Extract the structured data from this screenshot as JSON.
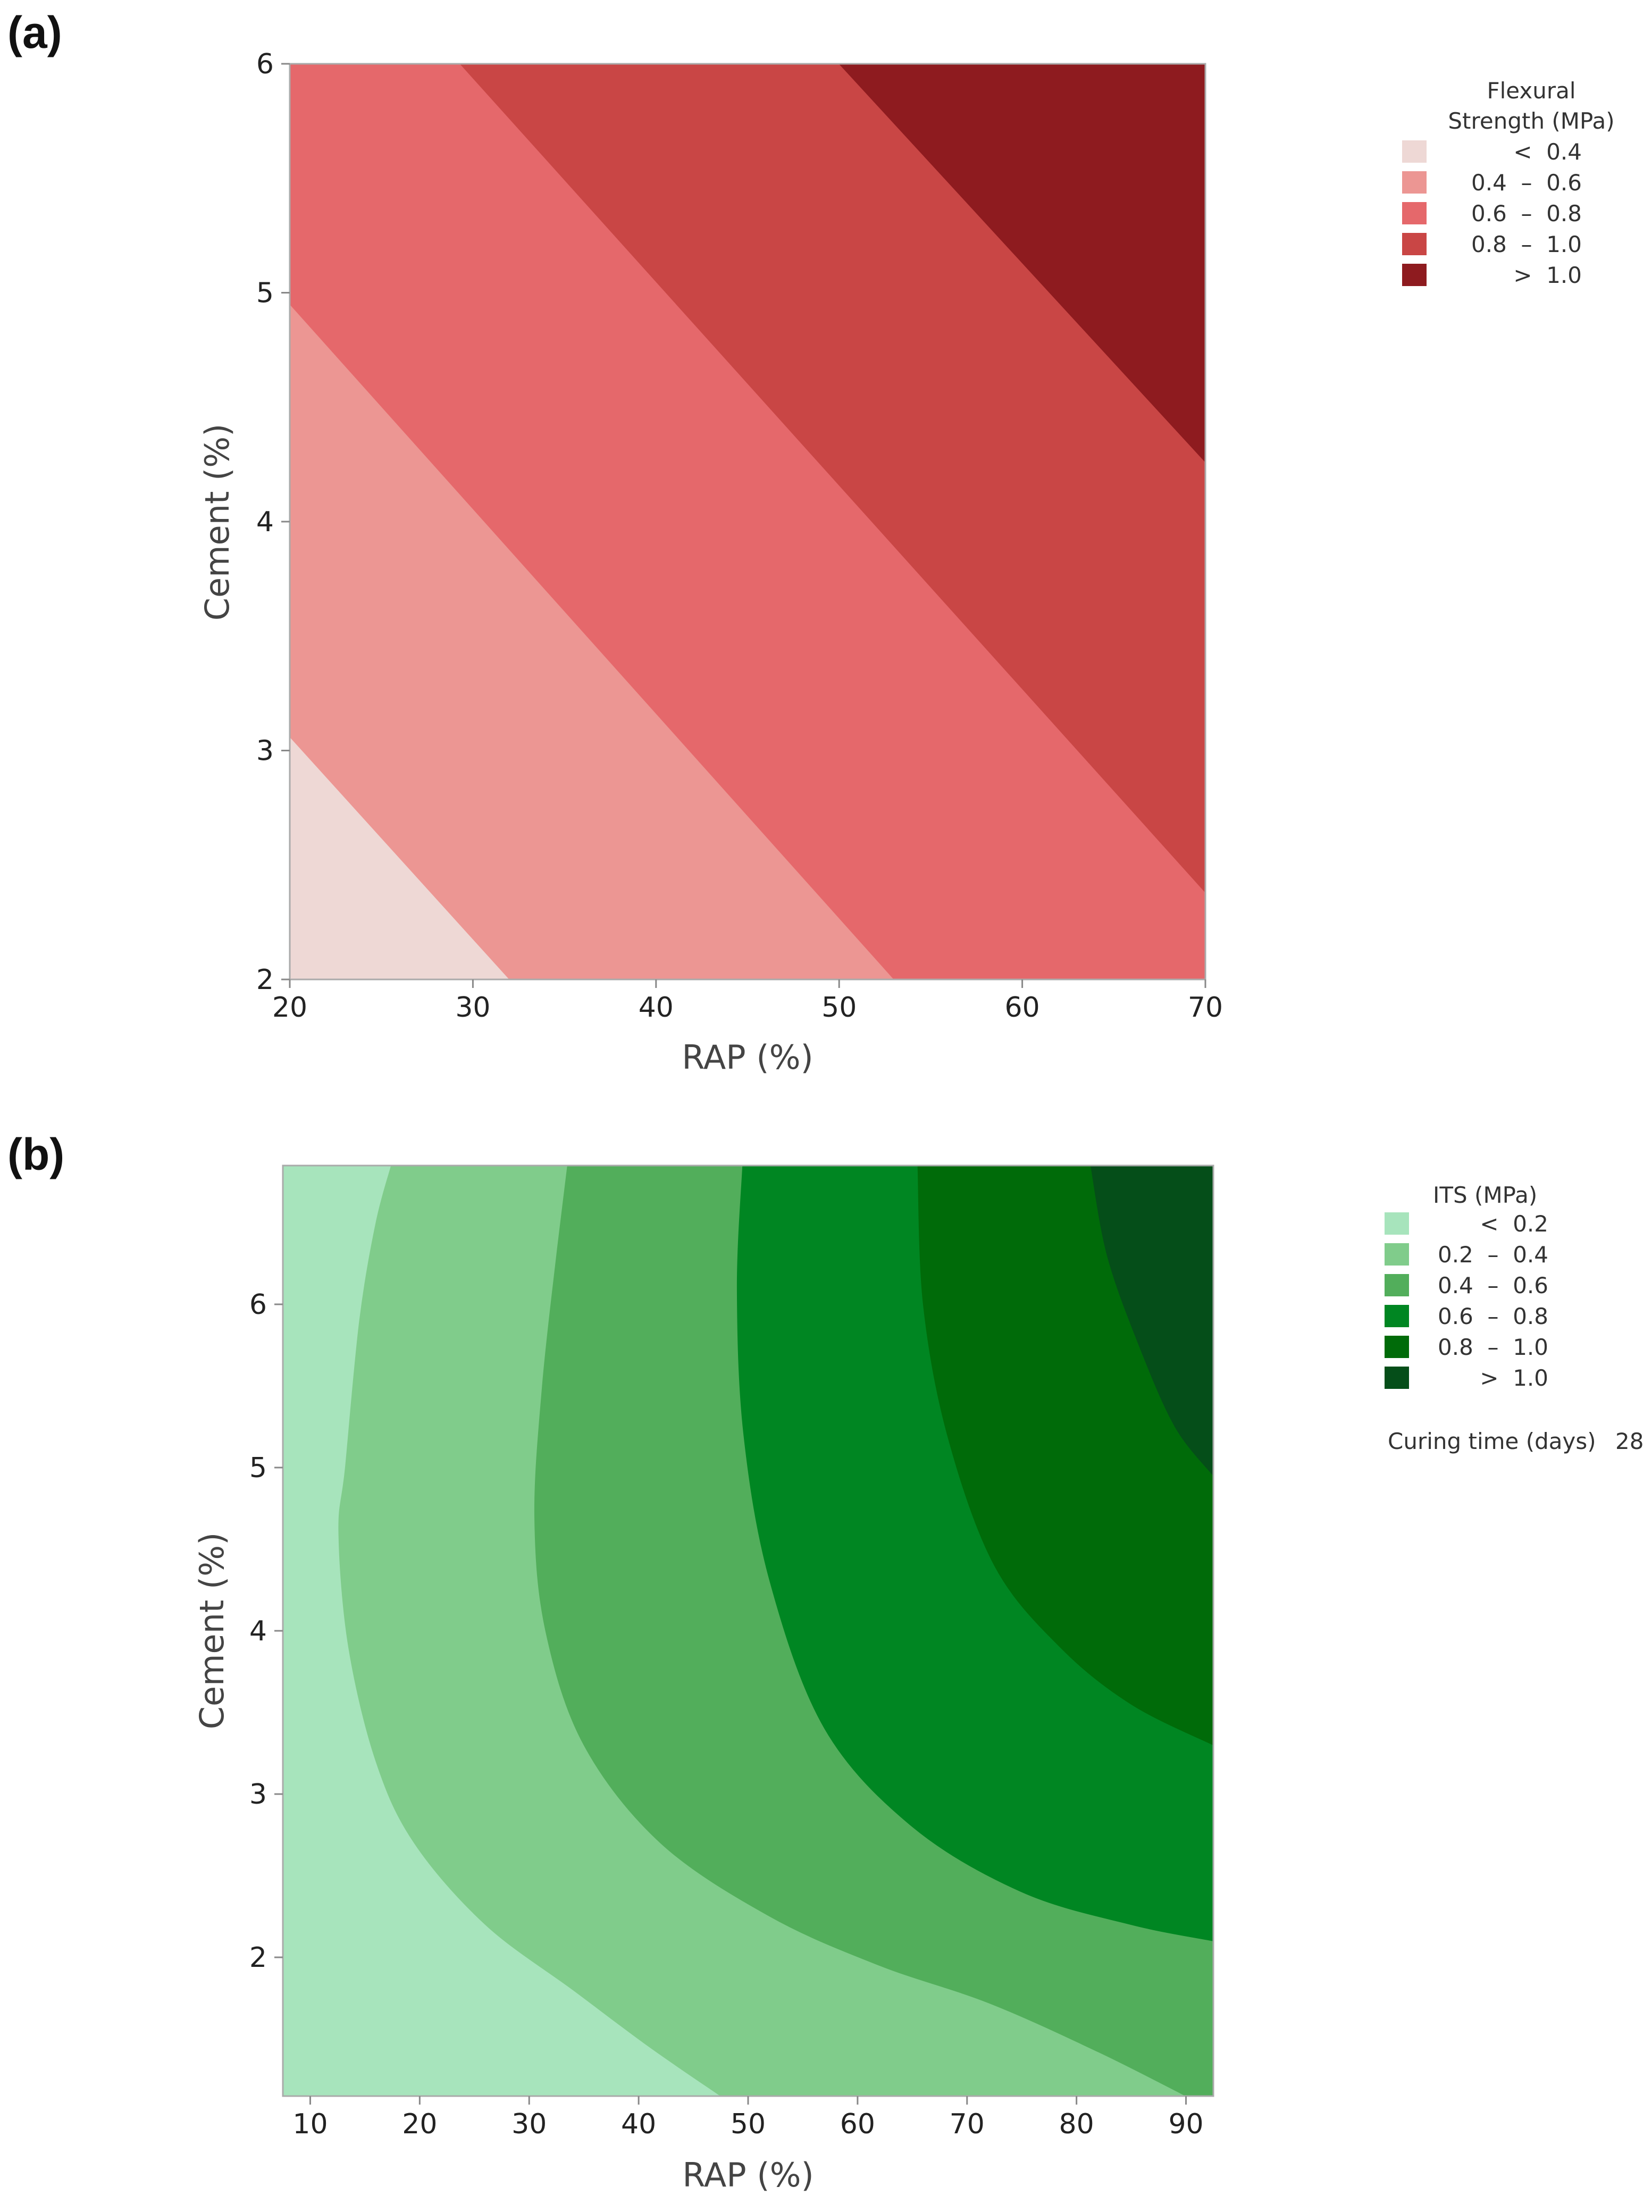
{
  "chart_data": [
    {
      "panel_label": "(a)",
      "type": "contour",
      "xlabel": "RAP (%)",
      "ylabel": "Cement (%)",
      "xlim": [
        20,
        70
      ],
      "ylim": [
        2,
        6
      ],
      "xticks": [
        "20",
        "30",
        "40",
        "50",
        "60",
        "70"
      ],
      "yticks": [
        "2",
        "3",
        "4",
        "5",
        "6"
      ],
      "legend_title": [
        "Flexural",
        "Strength (MPa)"
      ],
      "legend": [
        {
          "label": "<  0.4",
          "color": "#eed8d5"
        },
        {
          "label": "0.4  –  0.6",
          "color": "#ec9693"
        },
        {
          "label": "0.6  –  0.8",
          "color": "#e5686b"
        },
        {
          "label": "0.8  –  1.0",
          "color": "#c94645"
        },
        {
          "label": ">  1.0",
          "color": "#8e1b1f"
        }
      ],
      "regions": [
        {
          "color": "#eed8d5",
          "points": [
            [
              20,
              2
            ],
            [
              20,
              3.06
            ],
            [
              32,
              2
            ]
          ]
        },
        {
          "color": "#ec9693",
          "points": [
            [
              20,
              3.06
            ],
            [
              20,
              4.95
            ],
            [
              53,
              2
            ],
            [
              32,
              2
            ]
          ]
        },
        {
          "color": "#e5686b",
          "points": [
            [
              20,
              4.95
            ],
            [
              20,
              6
            ],
            [
              29.3,
              6
            ],
            [
              70,
              2.38
            ],
            [
              70,
              2
            ],
            [
              53,
              2
            ]
          ]
        },
        {
          "color": "#c94645",
          "points": [
            [
              29.3,
              6
            ],
            [
              50,
              6
            ],
            [
              70,
              4.26
            ],
            [
              70,
              2.38
            ]
          ]
        },
        {
          "color": "#8e1b1f",
          "points": [
            [
              50,
              6
            ],
            [
              70,
              6
            ],
            [
              70,
              4.26
            ]
          ]
        }
      ]
    },
    {
      "panel_label": "(b)",
      "type": "contour",
      "xlabel": "RAP (%)",
      "ylabel": "Cement (%)",
      "xlim": [
        7.5,
        92.5
      ],
      "ylim": [
        1.15,
        6.85
      ],
      "xticks": [
        "10",
        "20",
        "30",
        "40",
        "50",
        "60",
        "70",
        "80",
        "90"
      ],
      "yticks": [
        "2",
        "3",
        "4",
        "5",
        "6"
      ],
      "legend_title": [
        "ITS (MPa)"
      ],
      "legend": [
        {
          "label": "<  0.2",
          "color": "#a7e4bc"
        },
        {
          "label": "0.2  –  0.4",
          "color": "#80cc8b"
        },
        {
          "label": "0.4  –  0.6",
          "color": "#52ae5b"
        },
        {
          "label": "0.6  –  0.8",
          "color": "#008622"
        },
        {
          "label": "0.8  –  1.0",
          "color": "#006b09"
        },
        {
          "label": ">  1.0",
          "color": "#054e19"
        }
      ],
      "boundaries": [
        [
          [
            17.4,
            6.85
          ],
          [
            16,
            6.5
          ],
          [
            14.5,
            5.9
          ],
          [
            13.2,
            5
          ],
          [
            12.6,
            4.6
          ],
          [
            13.5,
            3.9
          ],
          [
            16,
            3.2
          ],
          [
            19.5,
            2.7
          ],
          [
            26,
            2.2
          ],
          [
            34,
            1.8
          ],
          [
            41,
            1.45
          ],
          [
            47.5,
            1.15
          ]
        ],
        [
          [
            33.5,
            6.85
          ],
          [
            32.5,
            6.3
          ],
          [
            31.2,
            5.5
          ],
          [
            30.5,
            4.7
          ],
          [
            31.5,
            4
          ],
          [
            35,
            3.3
          ],
          [
            42,
            2.7
          ],
          [
            52,
            2.25
          ],
          [
            62,
            1.95
          ],
          [
            72,
            1.72
          ],
          [
            82,
            1.42
          ],
          [
            90,
            1.15
          ]
        ],
        [
          [
            49.5,
            6.85
          ],
          [
            49,
            6.1
          ],
          [
            49.6,
            5.2
          ],
          [
            52,
            4.3
          ],
          [
            57,
            3.4
          ],
          [
            65,
            2.8
          ],
          [
            75,
            2.4
          ],
          [
            85,
            2.2
          ],
          [
            92.5,
            2.1
          ]
        ],
        [
          [
            65.5,
            6.85
          ],
          [
            66,
            6
          ],
          [
            68.2,
            5.2
          ],
          [
            72.5,
            4.4
          ],
          [
            78.5,
            3.9
          ],
          [
            85,
            3.55
          ],
          [
            92.5,
            3.3
          ]
        ],
        [
          [
            81.3,
            6.85
          ],
          [
            82.8,
            6.3
          ],
          [
            85.7,
            5.75
          ],
          [
            89,
            5.25
          ],
          [
            92.5,
            4.95
          ]
        ]
      ]
    },
    {
      "cond_label": "Curing time (days)",
      "cond_value": "28"
    }
  ]
}
